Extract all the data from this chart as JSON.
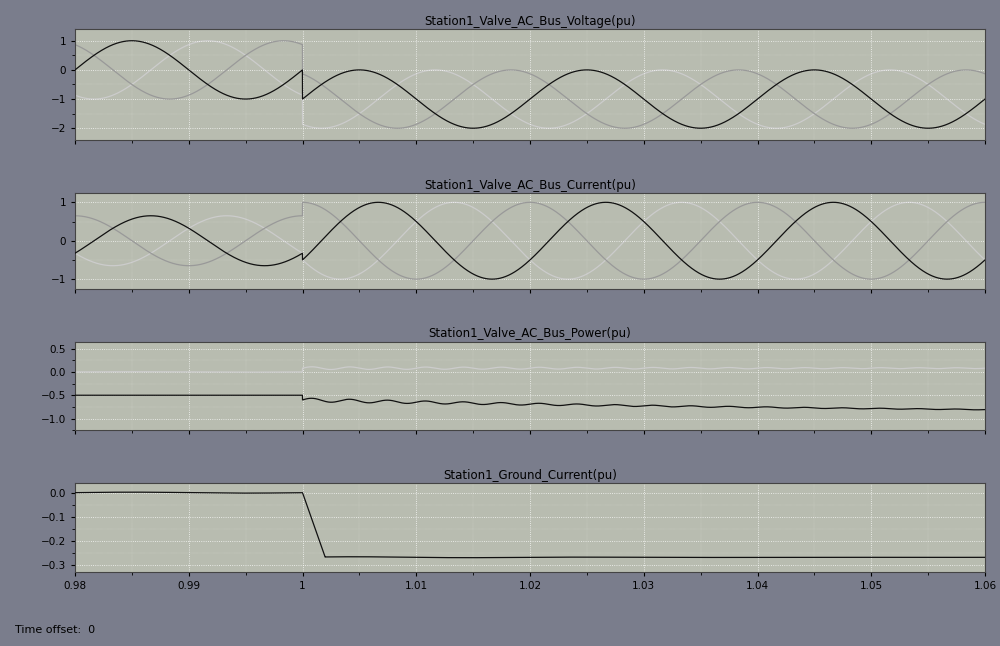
{
  "title1": "Station1_Valve_AC_Bus_Voltage(pu)",
  "title2": "Station1_Valve_AC_Bus_Current(pu)",
  "title3": "Station1_Valve_AC_Bus_Power(pu)",
  "title4": "Station1_Ground_Current(pu)",
  "time_label": "Time offset:  0",
  "xlim": [
    0.98,
    1.06
  ],
  "xticks": [
    0.98,
    0.99,
    1.0,
    1.01,
    1.02,
    1.03,
    1.04,
    1.05,
    1.06
  ],
  "xtick_labels": [
    "0.98",
    "0.99",
    "1",
    "1.01",
    "1.02",
    "1.03",
    "1.04",
    "1.05",
    "1.06"
  ],
  "fault_time": 1.0,
  "freq": 50,
  "bg_color": "#7A7D8C",
  "plot_bg": "#B8BCB0",
  "grid_color": "#FFFFFF",
  "line_dark": "#111111",
  "line_mid": "#999999",
  "line_light": "#CCCCCC",
  "voltage_ylim": [
    -2.4,
    1.4
  ],
  "voltage_yticks": [
    -2,
    -1,
    0,
    1
  ],
  "current_ylim": [
    -1.25,
    1.25
  ],
  "current_yticks": [
    -1,
    0,
    1
  ],
  "power_ylim": [
    -1.25,
    0.65
  ],
  "power_yticks": [
    -1,
    -0.5,
    0,
    0.5
  ],
  "ground_ylim": [
    -0.33,
    0.04
  ],
  "ground_yticks": [
    -0.3,
    -0.2,
    -0.1,
    0
  ]
}
